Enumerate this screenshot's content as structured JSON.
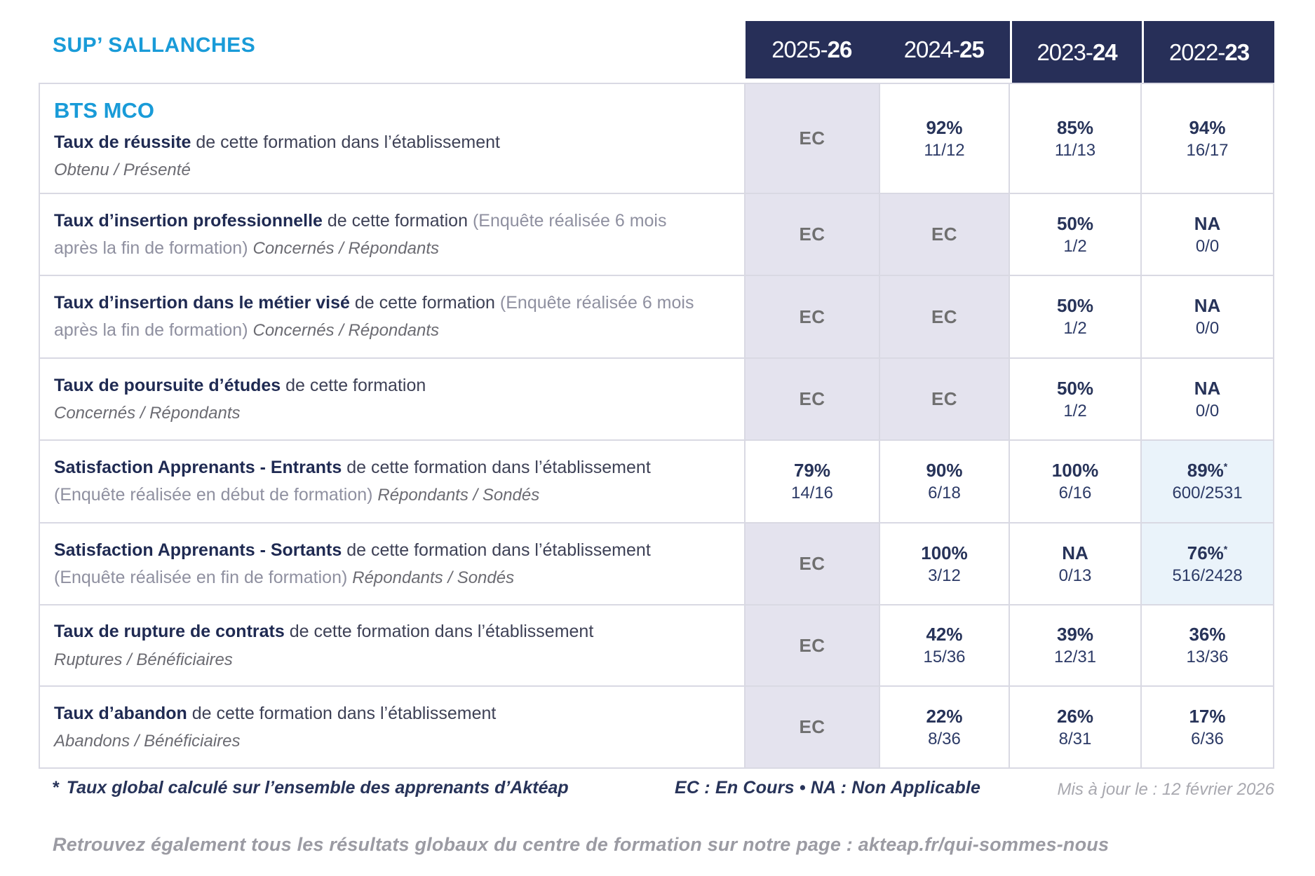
{
  "colors": {
    "accent_blue": "#199bd8",
    "header_navy": "#272f58",
    "value_navy": "#273359",
    "ec_cell_bg": "#e4e3ee",
    "highlight_cell_bg": "#eaf3fa",
    "grid_line": "#d9d9e3",
    "gray_text": "#6f6f6f"
  },
  "site": {
    "title": "SUP’ SALLANCHES"
  },
  "table": {
    "program": "BTS MCO",
    "columns": [
      {
        "prefix": "2025-",
        "suffix": "26"
      },
      {
        "prefix": "2024-",
        "suffix": "25"
      },
      {
        "prefix": "2023-",
        "suffix": "24"
      },
      {
        "prefix": "2022-",
        "suffix": "23"
      }
    ],
    "rows": [
      {
        "title": "Taux de réussite",
        "after": " de cette formation dans l’établissement",
        "paren": "",
        "inline_sub": "",
        "block_sub": "Obtenu / Présenté",
        "values": [
          {
            "kind": "ec",
            "main": "EC"
          },
          {
            "kind": "value",
            "main": "92%",
            "sub": "11/12"
          },
          {
            "kind": "value",
            "main": "85%",
            "sub": "11/13"
          },
          {
            "kind": "value",
            "main": "94%",
            "sub": "16/17"
          }
        ]
      },
      {
        "title": "Taux d’insertion professionnelle",
        "after": " de cette formation ",
        "paren": "(Enquête réalisée 6 mois après la fin de formation) ",
        "inline_sub": "Concernés / Répondants",
        "block_sub": "",
        "values": [
          {
            "kind": "ec",
            "main": "EC"
          },
          {
            "kind": "ec",
            "main": "EC"
          },
          {
            "kind": "value",
            "main": "50%",
            "sub": "1/2"
          },
          {
            "kind": "value",
            "main": "NA",
            "sub": "0/0"
          }
        ]
      },
      {
        "title": "Taux d’insertion dans le métier visé",
        "after": " de cette formation ",
        "paren": "(Enquête réalisée 6 mois après la fin de formation) ",
        "inline_sub": "Concernés / Répondants",
        "block_sub": "",
        "values": [
          {
            "kind": "ec",
            "main": "EC"
          },
          {
            "kind": "ec",
            "main": "EC"
          },
          {
            "kind": "value",
            "main": "50%",
            "sub": "1/2"
          },
          {
            "kind": "value",
            "main": "NA",
            "sub": "0/0"
          }
        ]
      },
      {
        "title": "Taux de poursuite d’études",
        "after": " de cette formation",
        "paren": "",
        "inline_sub": "",
        "block_sub": "Concernés / Répondants",
        "values": [
          {
            "kind": "ec",
            "main": "EC"
          },
          {
            "kind": "ec",
            "main": "EC"
          },
          {
            "kind": "value",
            "main": "50%",
            "sub": "1/2"
          },
          {
            "kind": "value",
            "main": "NA",
            "sub": "0/0"
          }
        ]
      },
      {
        "title": "Satisfaction Apprenants - Entrants",
        "after": " de cette formation dans l’établissement ",
        "paren": "(Enquête réalisée en début de formation) ",
        "inline_sub": "Répondants / Sondés",
        "block_sub": "",
        "values": [
          {
            "kind": "value",
            "main": "79%",
            "sub": "14/16"
          },
          {
            "kind": "value",
            "main": "90%",
            "sub": "6/18"
          },
          {
            "kind": "value",
            "main": "100%",
            "sub": "6/16"
          },
          {
            "kind": "value",
            "main": "89%",
            "sub": "600/2531",
            "star": true,
            "highlight": true
          }
        ]
      },
      {
        "title": "Satisfaction Apprenants - Sortants",
        "after": " de cette formation dans l’établissement ",
        "paren": "(Enquête réalisée en fin de formation) ",
        "inline_sub": "Répondants / Sondés",
        "block_sub": "",
        "values": [
          {
            "kind": "ec",
            "main": "EC"
          },
          {
            "kind": "value",
            "main": "100%",
            "sub": "3/12"
          },
          {
            "kind": "value",
            "main": "NA",
            "sub": "0/13"
          },
          {
            "kind": "value",
            "main": "76%",
            "sub": "516/2428",
            "star": true,
            "highlight": true
          }
        ]
      },
      {
        "title": "Taux de rupture de contrats",
        "after": " de cette formation dans l’établissement",
        "paren": "",
        "inline_sub": "",
        "block_sub": "Ruptures / Bénéficiaires",
        "values": [
          {
            "kind": "ec",
            "main": "EC"
          },
          {
            "kind": "value",
            "main": "42%",
            "sub": "15/36"
          },
          {
            "kind": "value",
            "main": "39%",
            "sub": "12/31"
          },
          {
            "kind": "value",
            "main": "36%",
            "sub": "13/36"
          }
        ]
      },
      {
        "title": "Taux d’abandon",
        "after": " de cette formation dans l’établissement",
        "paren": "",
        "inline_sub": "",
        "block_sub": "Abandons / Bénéficiaires",
        "values": [
          {
            "kind": "ec",
            "main": "EC"
          },
          {
            "kind": "value",
            "main": "22%",
            "sub": "8/36"
          },
          {
            "kind": "value",
            "main": "26%",
            "sub": "8/31"
          },
          {
            "kind": "value",
            "main": "17%",
            "sub": "6/36"
          }
        ]
      }
    ]
  },
  "footer": {
    "asterisk": "*",
    "note": "Taux global calculé sur l’ensemble des apprenants d’Aktéap",
    "legend": "EC : En Cours  •  NA : Non Applicable",
    "updated": "Mis à jour le : 12 février 2026",
    "bottom_note": "Retrouvez également tous les résultats globaux du centre de formation sur notre page : akteap.fr/qui-sommes-nous"
  }
}
